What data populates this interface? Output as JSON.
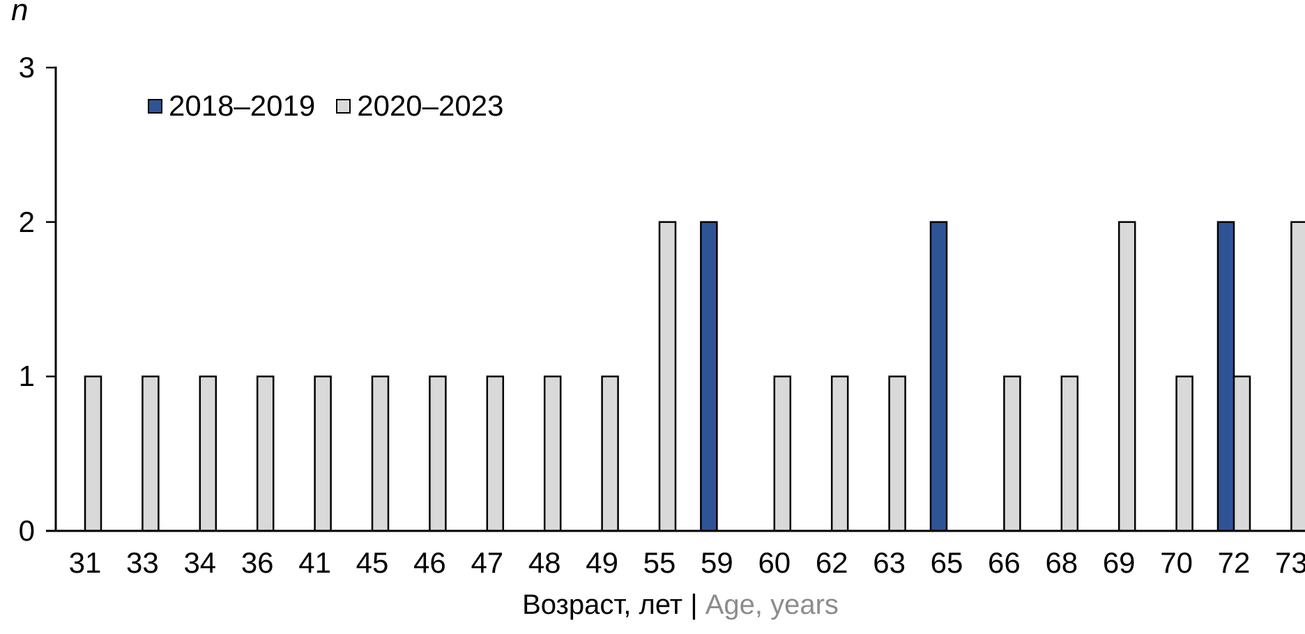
{
  "chart_data": {
    "type": "bar",
    "title": "",
    "ylabel": "n",
    "xlabel_ru": "Возраст, лет",
    "xlabel_sep": " | ",
    "xlabel_en": "Age, years",
    "categories": [
      "31",
      "33",
      "34",
      "36",
      "41",
      "45",
      "46",
      "47",
      "48",
      "49",
      "55",
      "59",
      "60",
      "62",
      "63",
      "65",
      "66",
      "68",
      "69",
      "70",
      "72",
      "73"
    ],
    "series": [
      {
        "name": "2018–2019",
        "color": "#2F5496",
        "values": [
          0,
          0,
          0,
          0,
          0,
          0,
          0,
          0,
          0,
          0,
          0,
          2,
          0,
          0,
          0,
          2,
          0,
          0,
          0,
          0,
          2,
          0
        ]
      },
      {
        "name": "2020–2023",
        "color": "#D9D9D9",
        "values": [
          1,
          1,
          1,
          1,
          1,
          1,
          1,
          1,
          1,
          1,
          2,
          0,
          1,
          1,
          1,
          0,
          1,
          1,
          2,
          1,
          1,
          2
        ]
      }
    ],
    "ylim": [
      0,
      3
    ],
    "yticks": [
      "0",
      "1",
      "2",
      "3"
    ],
    "grid": false,
    "legend_position": "top-left-inside",
    "colors": {
      "bar_border": "#000000",
      "axis": "#000000",
      "xlabel_en_color": "#8c8c8c"
    }
  }
}
